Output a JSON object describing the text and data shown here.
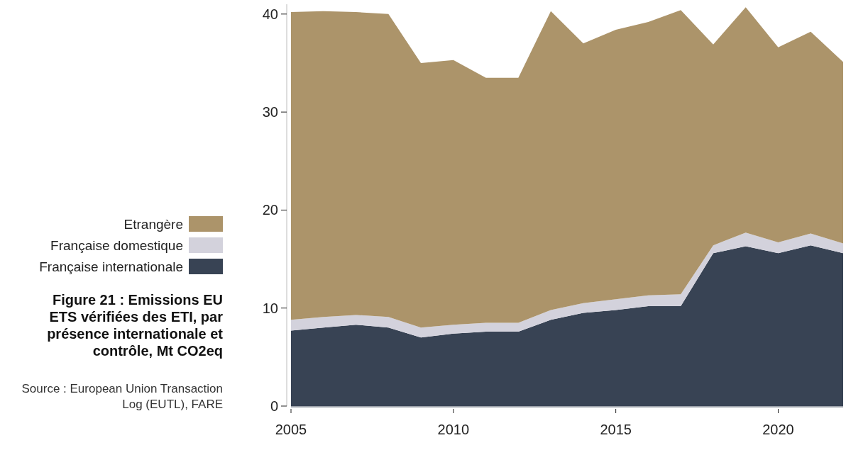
{
  "chart_data": {
    "type": "area",
    "stacked": true,
    "title": "Figure 21 : Emissions EU ETS vérifiées des ETI, par présence internationale et contrôle, Mt CO2eq",
    "annotations": [
      "Source : European Union Transaction Log (EUTL), FARE"
    ],
    "x": [
      2005,
      2006,
      2007,
      2008,
      2009,
      2010,
      2011,
      2012,
      2013,
      2014,
      2015,
      2016,
      2017,
      2018,
      2019,
      2020,
      2021,
      2022
    ],
    "series": [
      {
        "name": "Française internationale",
        "color": "#384354",
        "values": [
          7.7,
          8.0,
          8.3,
          8.0,
          7.0,
          7.4,
          7.6,
          7.6,
          8.8,
          9.5,
          9.8,
          10.2,
          10.2,
          15.6,
          16.3,
          15.6,
          16.4,
          15.6
        ]
      },
      {
        "name": "Française domestique",
        "color": "#d3d2dc",
        "values": [
          1.1,
          1.1,
          1.0,
          1.1,
          1.0,
          0.9,
          0.9,
          0.9,
          1.0,
          1.0,
          1.1,
          1.1,
          1.2,
          0.8,
          1.4,
          1.1,
          1.2,
          1.0
        ]
      },
      {
        "name": "Etrangère",
        "color": "#ac946a",
        "values": [
          31.4,
          31.2,
          30.9,
          30.9,
          27.0,
          27.0,
          25.0,
          25.0,
          30.5,
          26.5,
          27.5,
          27.9,
          29.0,
          20.5,
          23.0,
          19.9,
          20.6,
          18.5
        ]
      }
    ],
    "xlim": [
      2005,
      2022
    ],
    "xticks": [
      2005,
      2010,
      2015,
      2020
    ],
    "ylim": [
      0,
      41
    ],
    "yticks": [
      0,
      10,
      20,
      30,
      40
    ],
    "grid": false,
    "legend": "left"
  }
}
